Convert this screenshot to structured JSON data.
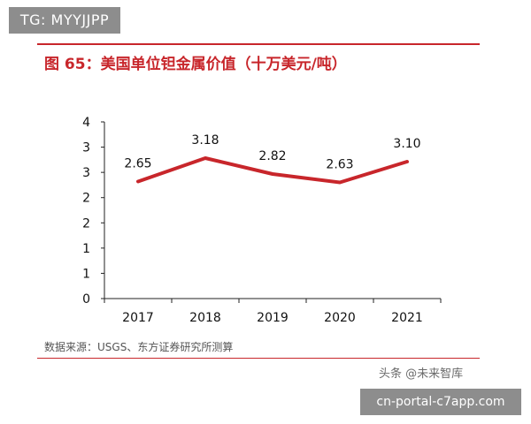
{
  "badge": {
    "text": "TG: MYYJJPP"
  },
  "url_banner": {
    "text": "cn-portal-c7app.com"
  },
  "watermark": {
    "text": "头条 @未来智库"
  },
  "chart_data": {
    "type": "line",
    "title": "图 65：美国单位钽金属价值（十万美元/吨）",
    "source": "数据来源：USGS、东方证券研究所测算",
    "categories": [
      "2017",
      "2018",
      "2019",
      "2020",
      "2021"
    ],
    "series": [
      {
        "values": [
          2.65,
          3.18,
          2.82,
          2.63,
          3.1
        ]
      }
    ],
    "data_labels": [
      "2.65",
      "3.18",
      "2.82",
      "2.63",
      "3.10"
    ],
    "y_tick_labels": [
      "0",
      "1",
      "1",
      "2",
      "2",
      "3",
      "3",
      "4"
    ],
    "ylim": [
      0,
      4
    ],
    "xlabel": "",
    "ylabel": "",
    "grid": false,
    "line_color": "#c8262b"
  }
}
